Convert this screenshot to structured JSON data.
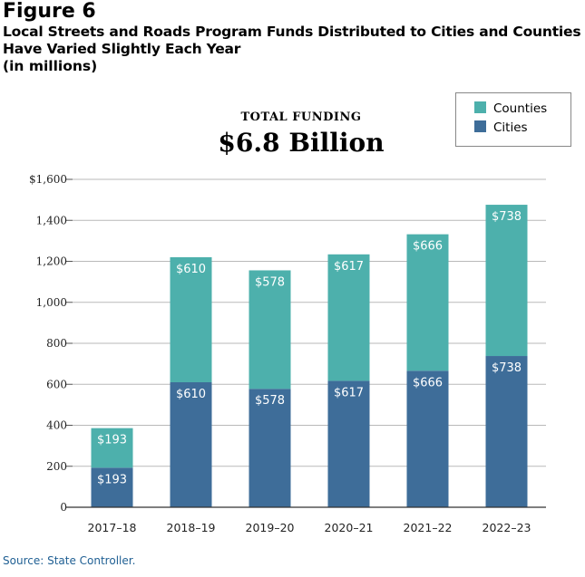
{
  "figure_label": "Figure 6",
  "title": "Local Streets and Roads Program Funds Distributed to Cities and Counties Have Varied Slightly Each Year",
  "subtitle": "(in millions)",
  "total_label": "TOTAL FUNDING",
  "total_value": "$6.8 Billion",
  "source": "Source:  State Controller.",
  "colors": {
    "counties": "#4db0ac",
    "cities": "#3e6d99"
  },
  "chart_data": {
    "type": "bar",
    "stacked": true,
    "categories": [
      "2017–18",
      "2018–19",
      "2019–20",
      "2020–21",
      "2021–22",
      "2022–23"
    ],
    "series": [
      {
        "name": "Cities",
        "values": [
          193,
          610,
          578,
          617,
          666,
          738
        ],
        "labels": [
          "$193",
          "$610",
          "$578",
          "$617",
          "$666",
          "$738"
        ]
      },
      {
        "name": "Counties",
        "values": [
          193,
          610,
          578,
          617,
          666,
          738
        ],
        "labels": [
          "$193",
          "$610",
          "$578",
          "$617",
          "$666",
          "$738"
        ]
      }
    ],
    "legend": [
      "Counties",
      "Cities"
    ],
    "legend_position": "top-right",
    "ylim": [
      0,
      1600
    ],
    "yticks": [
      0,
      200,
      400,
      600,
      800,
      1000,
      1200,
      1400,
      1600
    ],
    "ytick_labels": [
      "0",
      "200",
      "400",
      "600",
      "800",
      "1,000",
      "1,200",
      "1,400",
      "$1,600"
    ],
    "xlabel": "",
    "ylabel": "",
    "grid": true
  }
}
